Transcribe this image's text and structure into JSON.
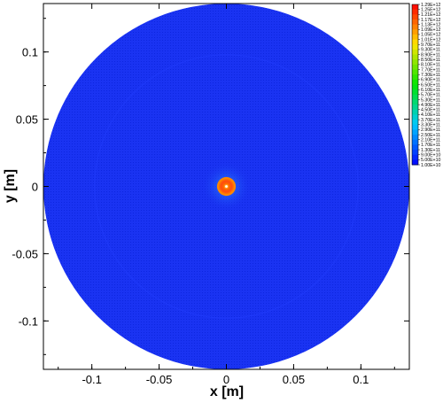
{
  "chart_data": {
    "type": "heatmap",
    "xlabel": "x [m]",
    "ylabel": "y [m]",
    "xlim": [
      -0.136,
      0.136
    ],
    "ylim": [
      -0.136,
      0.136
    ],
    "domain_radius": 0.136,
    "x_ticks": [
      -0.1,
      -0.05,
      0,
      0.05,
      0.1
    ],
    "x_tick_labels": [
      "-0.1",
      "-0.05",
      "0",
      "0.05",
      "0.1"
    ],
    "y_ticks": [
      0.1,
      0.05,
      0,
      -0.05,
      -0.1
    ],
    "y_tick_labels": [
      "0.1",
      "0.05",
      "0",
      "-0.05",
      "-0.1"
    ],
    "hotspot": {
      "x": 0,
      "y": 0,
      "radius": 0.005
    },
    "colorbar": {
      "min": 10000000000,
      "max": 1290000000000,
      "levels": [
        "1.29E+12",
        "1.25E+12",
        "1.21E+12",
        "1.17E+12",
        "1.13E+12",
        "1.09E+12",
        "1.05E+12",
        "1.01E+12",
        "9.70E+11",
        "9.30E+11",
        "8.90E+11",
        "8.50E+11",
        "8.10E+11",
        "7.70E+11",
        "7.30E+11",
        "6.90E+11",
        "6.50E+11",
        "6.10E+11",
        "5.70E+11",
        "5.30E+11",
        "4.90E+11",
        "4.50E+11",
        "4.10E+11",
        "3.70E+11",
        "3.30E+11",
        "2.90E+11",
        "2.50E+11",
        "2.10E+11",
        "1.70E+11",
        "1.30E+11",
        "9.00E+10",
        "5.00E+10",
        "1.00E+10"
      ]
    },
    "grid": false,
    "colors": {
      "background_field": "#1a33f2",
      "hot_core": "#ff2a00",
      "ring": "#ff8800"
    }
  }
}
